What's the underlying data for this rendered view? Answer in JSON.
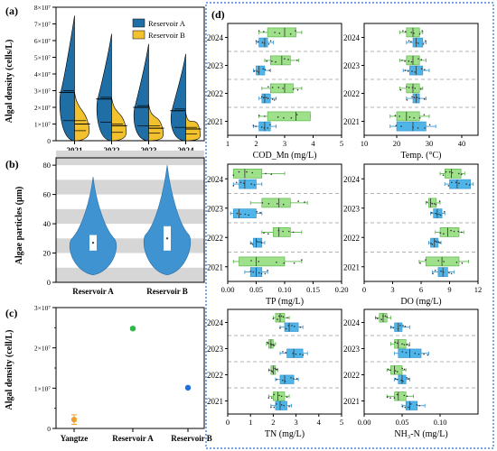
{
  "colors": {
    "reservoir_a": "#1f6fa6",
    "reservoir_b": "#f2c12e",
    "green_box": "#9fe08a",
    "green_edge": "#4caf3a",
    "blue_box": "#4fb4e8",
    "blue_edge": "#2a8fd0",
    "band": "#d6d6d6",
    "dashed": "#9a9a9a",
    "frame": "#2a6fd0"
  },
  "chart_data": [
    {
      "panel": "(a)",
      "type": "split-violin",
      "ylabel": "Algal density  (cells/L)",
      "yticks": [
        "0",
        "1×10⁷",
        "2×10⁷",
        "3×10⁷",
        "4×10⁷",
        "5×10⁷",
        "6×10⁷",
        "7×10⁷",
        "8×10⁷"
      ],
      "ylim": [
        0,
        80000000
      ],
      "categories": [
        "2021",
        "2022",
        "2023",
        "2024"
      ],
      "legend": [
        "Reservoir A",
        "Reservoir B"
      ],
      "series": [
        {
          "name": "Reservoir A",
          "max": [
            75000000,
            64000000,
            58000000,
            52000000
          ],
          "median": [
            29000000,
            25000000,
            20000000,
            18000000
          ],
          "q1": [
            12000000,
            11000000,
            9000000,
            8000000
          ],
          "q3": [
            30000000,
            26000000,
            21000000,
            19000000
          ]
        },
        {
          "name": "Reservoir B",
          "max": [
            29000000,
            26000000,
            22000000,
            17000000
          ],
          "median": [
            10000000,
            9000000,
            7500000,
            7000000
          ],
          "q1": [
            6000000,
            5000000,
            4500000,
            4000000
          ],
          "q3": [
            12000000,
            10000000,
            9000000,
            8000000
          ]
        }
      ]
    },
    {
      "panel": "(b)",
      "type": "violin",
      "ylabel": "Algae particles  (μm)",
      "yticks": [
        "0",
        "20",
        "40",
        "60",
        "80"
      ],
      "ylim": [
        0,
        85
      ],
      "categories": [
        "Reservoir A",
        "Reservoir B"
      ],
      "min": [
        5,
        5
      ],
      "max": [
        72,
        80
      ],
      "q1": [
        22,
        22
      ],
      "q3": [
        32,
        38
      ],
      "median": [
        27,
        30
      ]
    },
    {
      "panel": "(c)",
      "type": "scatter",
      "ylabel": "Algal density  (cell/L)",
      "yticks": [
        "0",
        "1×10⁷",
        "2×10⁷",
        "3×10⁷"
      ],
      "ylim": [
        0,
        30000000
      ],
      "categories": [
        "Yangtze",
        "Reservoir A",
        "Reservoir B"
      ],
      "values": [
        2200000,
        24800000,
        10100000
      ],
      "err": [
        1200000,
        300000,
        150000
      ],
      "colors": [
        "#f0a030",
        "#2fb84a",
        "#1f6fe0"
      ]
    },
    {
      "panel": "(d)",
      "type": "box-grid",
      "years": [
        "2024",
        "2023",
        "2022",
        "2021"
      ],
      "plots": [
        {
          "xlabel": "COD_Mn  (mg/L)",
          "xlim": [
            1,
            5
          ],
          "xticks": [
            "1",
            "2",
            "3",
            "4",
            "5"
          ],
          "green": [
            [
              2.4,
              3.0,
              3.4,
              2.1,
              3.6
            ],
            [
              2.5,
              2.9,
              3.2,
              2.3,
              3.5
            ],
            [
              2.5,
              3.0,
              3.3,
              2.2,
              3.6
            ],
            [
              2.4,
              3.4,
              3.9,
              2.1,
              3.9
            ]
          ],
          "blue": [
            [
              2.1,
              2.3,
              2.4,
              2.0,
              2.6
            ],
            [
              2.0,
              2.1,
              2.3,
              1.9,
              2.5
            ],
            [
              2.2,
              2.3,
              2.5,
              2.1,
              2.7
            ],
            [
              2.1,
              2.3,
              2.5,
              1.9,
              2.7
            ]
          ]
        },
        {
          "xlabel": "Temp. (°C)",
          "xlim": [
            10,
            45
          ],
          "xticks": [
            "10",
            "20",
            "30",
            "40"
          ],
          "green": [
            [
              23,
              25,
              27,
              21,
              28
            ],
            [
              23,
              25,
              27,
              21,
              29
            ],
            [
              23,
              25,
              27,
              21,
              28
            ],
            [
              20,
              23,
              27,
              18,
              30
            ]
          ],
          "blue": [
            [
              25,
              26,
              28,
              23,
              29
            ],
            [
              24,
              26,
              28,
              22,
              30
            ],
            [
              25,
              26,
              27,
              23,
              29
            ],
            [
              20,
              25,
              29,
              18,
              32
            ]
          ]
        },
        {
          "xlabel": "TP  (mg/L)",
          "xlim": [
            0,
            0.2
          ],
          "xticks": [
            "0.00",
            "0.05",
            "0.10",
            "0.15",
            "0.20"
          ],
          "green": [
            [
              0.01,
              0.03,
              0.06,
              0.01,
              0.1
            ],
            [
              0.06,
              0.09,
              0.11,
              0.04,
              0.14
            ],
            [
              0.08,
              0.09,
              0.11,
              0.06,
              0.13
            ],
            [
              0.02,
              0.05,
              0.1,
              0.01,
              0.13
            ]
          ],
          "blue": [
            [
              0.02,
              0.03,
              0.05,
              0.01,
              0.06
            ],
            [
              0.01,
              0.02,
              0.05,
              0.005,
              0.06
            ],
            [
              0.045,
              0.05,
              0.06,
              0.04,
              0.065
            ],
            [
              0.04,
              0.05,
              0.06,
              0.03,
              0.07
            ]
          ]
        },
        {
          "xlabel": "DO  (mg/L)",
          "xlim": [
            0,
            12
          ],
          "xticks": [
            "0",
            "3",
            "6",
            "9",
            "12"
          ],
          "green": [
            [
              8.5,
              9.2,
              10.2,
              8.0,
              10.6
            ],
            [
              6.8,
              7.0,
              7.6,
              6.5,
              8.0
            ],
            [
              8.0,
              8.8,
              10.0,
              7.5,
              10.5
            ],
            [
              6.5,
              8.2,
              10.0,
              5.8,
              11.0
            ]
          ],
          "blue": [
            [
              9.0,
              9.8,
              11.2,
              8.5,
              11.5
            ],
            [
              7.3,
              7.7,
              8.2,
              7.0,
              8.5
            ],
            [
              7.0,
              7.4,
              7.8,
              6.8,
              8.1
            ],
            [
              7.8,
              8.3,
              8.8,
              7.2,
              9.5
            ]
          ]
        },
        {
          "xlabel": "TN  (mg/L)",
          "xlim": [
            0,
            5
          ],
          "xticks": [
            "0",
            "1",
            "2",
            "3",
            "4",
            "5"
          ],
          "green": [
            [
              2.1,
              2.3,
              2.5,
              2.0,
              2.7
            ],
            [
              1.8,
              1.9,
              2.0,
              1.7,
              2.1
            ],
            [
              1.9,
              2.0,
              2.1,
              1.8,
              2.2
            ],
            [
              2.0,
              2.2,
              2.5,
              1.8,
              2.7
            ]
          ],
          "blue": [
            [
              2.5,
              2.7,
              3.1,
              2.3,
              3.3
            ],
            [
              2.6,
              2.9,
              3.3,
              2.3,
              3.5
            ],
            [
              2.3,
              2.5,
              2.9,
              2.1,
              3.1
            ],
            [
              2.1,
              2.3,
              2.6,
              1.9,
              2.8
            ]
          ]
        },
        {
          "xlabel": "NH₃-N  (mg/L)",
          "xlim": [
            0,
            0.15
          ],
          "xticks": [
            "0.00",
            "0.05",
            "0.10"
          ],
          "green": [
            [
              0.02,
              0.025,
              0.03,
              0.015,
              0.035
            ],
            [
              0.04,
              0.045,
              0.055,
              0.035,
              0.06
            ],
            [
              0.035,
              0.04,
              0.05,
              0.03,
              0.055
            ],
            [
              0.04,
              0.045,
              0.055,
              0.03,
              0.065
            ]
          ],
          "blue": [
            [
              0.04,
              0.045,
              0.05,
              0.035,
              0.06
            ],
            [
              0.045,
              0.06,
              0.075,
              0.04,
              0.085
            ],
            [
              0.045,
              0.05,
              0.055,
              0.04,
              0.06
            ],
            [
              0.055,
              0.06,
              0.07,
              0.05,
              0.08
            ]
          ]
        }
      ]
    }
  ]
}
